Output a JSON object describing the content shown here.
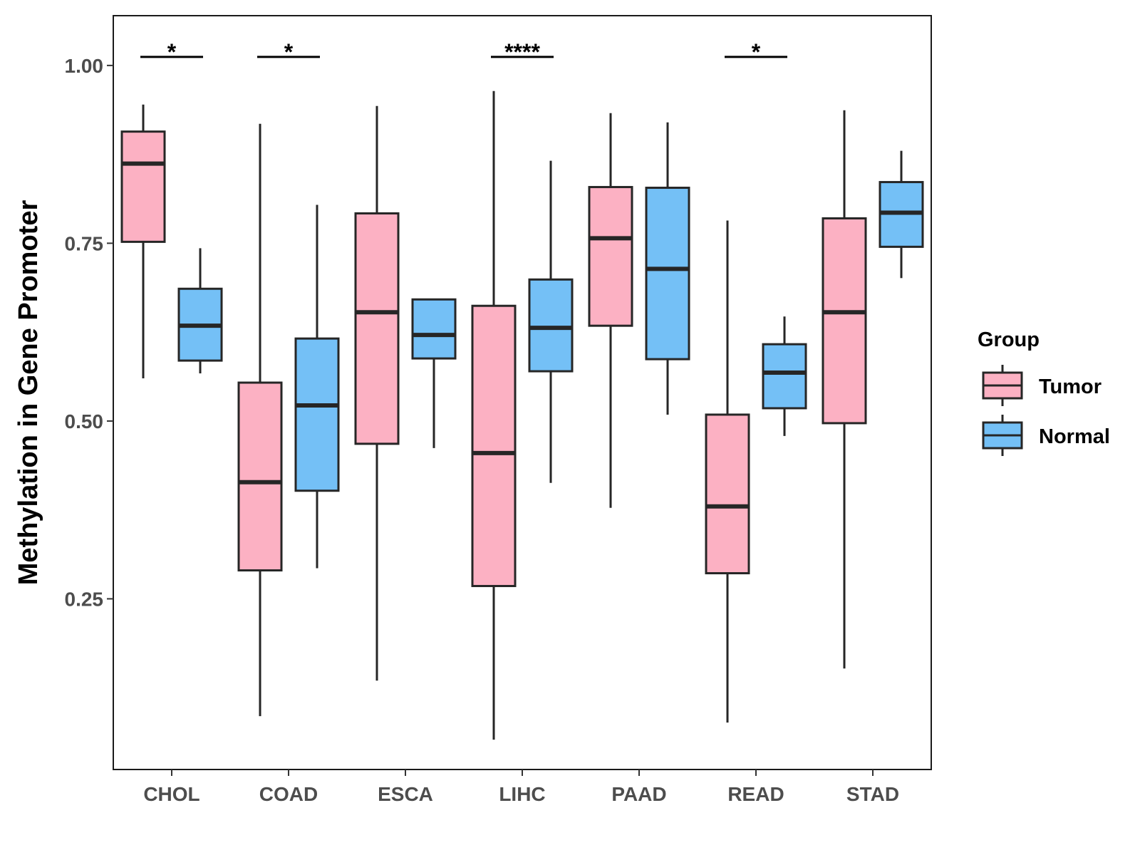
{
  "chart_data": {
    "type": "boxplot",
    "title": "",
    "xlabel": "",
    "ylabel": "Methylation in Gene Promoter",
    "ylim": [
      0.01,
      1.07
    ],
    "yticks": [
      0.25,
      0.5,
      0.75,
      1.0
    ],
    "ytick_labels": [
      "0.25",
      "0.50",
      "0.75",
      "1.00"
    ],
    "categories": [
      "CHOL",
      "COAD",
      "ESCA",
      "LIHC",
      "PAAD",
      "READ",
      "STAD"
    ],
    "grid": false,
    "legend": {
      "title": "Group",
      "placement": "right",
      "entries": [
        "Tumor",
        "Normal"
      ]
    },
    "series": [
      {
        "name": "Tumor",
        "color": "#fcb1c3",
        "boxes": [
          {
            "category": "CHOL",
            "whisker_low": 0.56,
            "q1": 0.752,
            "median": 0.862,
            "q3": 0.907,
            "whisker_high": 0.945
          },
          {
            "category": "COAD",
            "whisker_low": 0.085,
            "q1": 0.29,
            "median": 0.414,
            "q3": 0.554,
            "whisker_high": 0.918
          },
          {
            "category": "ESCA",
            "whisker_low": 0.135,
            "q1": 0.468,
            "median": 0.653,
            "q3": 0.792,
            "whisker_high": 0.943
          },
          {
            "category": "LIHC",
            "whisker_low": 0.052,
            "q1": 0.268,
            "median": 0.455,
            "q3": 0.662,
            "whisker_high": 0.964
          },
          {
            "category": "PAAD",
            "whisker_low": 0.378,
            "q1": 0.634,
            "median": 0.757,
            "q3": 0.829,
            "whisker_high": 0.933
          },
          {
            "category": "READ",
            "whisker_low": 0.076,
            "q1": 0.286,
            "median": 0.38,
            "q3": 0.509,
            "whisker_high": 0.782
          },
          {
            "category": "STAD",
            "whisker_low": 0.152,
            "q1": 0.497,
            "median": 0.653,
            "q3": 0.785,
            "whisker_high": 0.937
          }
        ]
      },
      {
        "name": "Normal",
        "color": "#74c0f6",
        "boxes": [
          {
            "category": "CHOL",
            "whisker_low": 0.567,
            "q1": 0.585,
            "median": 0.634,
            "q3": 0.686,
            "whisker_high": 0.743
          },
          {
            "category": "COAD",
            "whisker_low": 0.293,
            "q1": 0.402,
            "median": 0.522,
            "q3": 0.616,
            "whisker_high": 0.804
          },
          {
            "category": "ESCA",
            "whisker_low": 0.462,
            "q1": 0.588,
            "median": 0.621,
            "q3": 0.671,
            "whisker_high": 0.671
          },
          {
            "category": "LIHC",
            "whisker_low": 0.413,
            "q1": 0.57,
            "median": 0.631,
            "q3": 0.699,
            "whisker_high": 0.866
          },
          {
            "category": "PAAD",
            "whisker_low": 0.509,
            "q1": 0.587,
            "median": 0.714,
            "q3": 0.828,
            "whisker_high": 0.92
          },
          {
            "category": "READ",
            "whisker_low": 0.479,
            "q1": 0.518,
            "median": 0.568,
            "q3": 0.608,
            "whisker_high": 0.647
          },
          {
            "category": "STAD",
            "whisker_low": 0.701,
            "q1": 0.745,
            "median": 0.793,
            "q3": 0.836,
            "whisker_high": 0.88
          }
        ]
      }
    ],
    "significance": [
      {
        "category": "CHOL",
        "label": "*",
        "y": 1.012
      },
      {
        "category": "COAD",
        "label": "*",
        "y": 1.012
      },
      {
        "category": "LIHC",
        "label": "****",
        "y": 1.012
      },
      {
        "category": "READ",
        "label": "*",
        "y": 1.012
      }
    ]
  }
}
